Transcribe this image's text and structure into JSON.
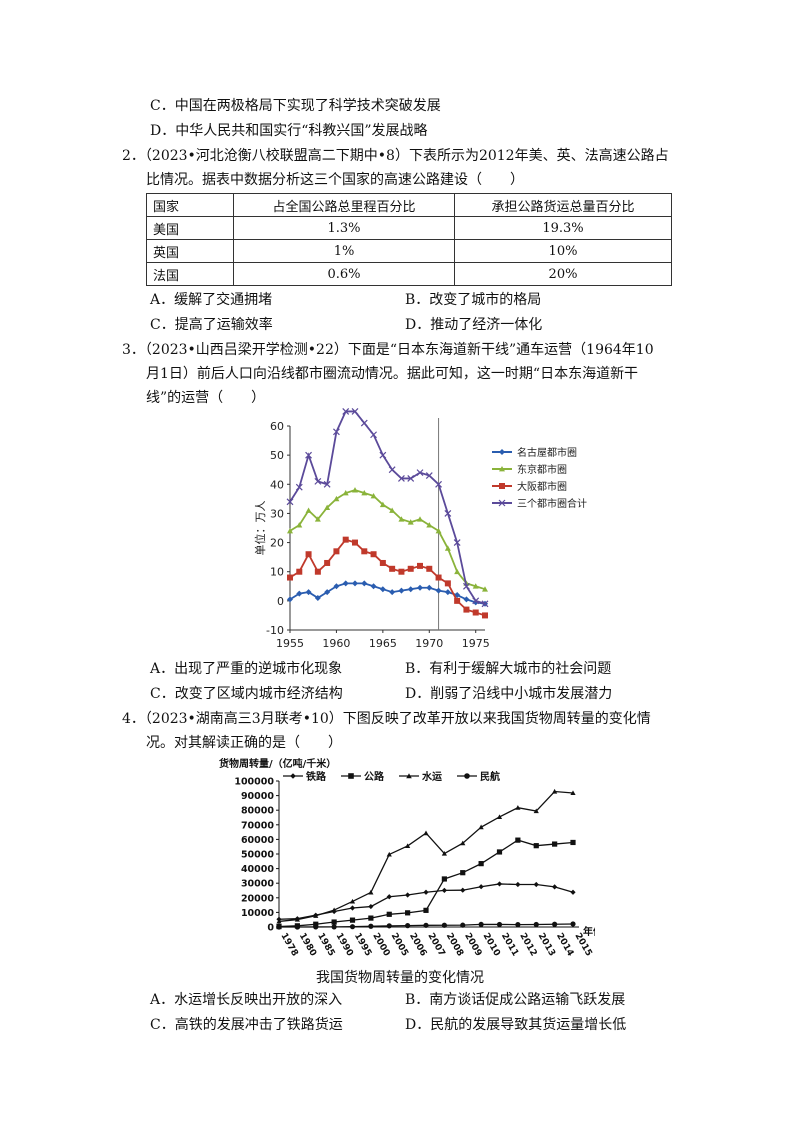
{
  "q1": {
    "optC": "C．中国在两极格局下实现了科学技术突破发展",
    "optD": "D．中华人民共和国实行“科教兴国”发展战略"
  },
  "q2": {
    "line1": "2．（2023•河北沧衡八校联盟高二下期中•8）下表所示为2012年美、英、法高速公路占",
    "line2": "比情况。据表中数据分析这三个国家的高速公路建设（　　）",
    "table": {
      "headers": [
        "国家",
        "占全国公路总里程百分比",
        "承担公路货运总量百分比"
      ],
      "rows": [
        [
          "美国",
          "1.3%",
          "19.3%"
        ],
        [
          "英国",
          "1%",
          "10%"
        ],
        [
          "法国",
          "0.6%",
          "20%"
        ]
      ]
    },
    "options": [
      "A．缓解了交通拥堵",
      "B．改变了城市的格局",
      "C．提高了运输效率",
      "D．推动了经济一体化"
    ]
  },
  "q3": {
    "line1": "3．（2023•山西吕梁开学检测•22）下面是“日本东海道新干线”通车运营（1964年10",
    "line2": "月1日）前后人口向沿线都市圈流动情况。据此可知，这一时期“日本东海道新干",
    "line3": "线”的运营（　　）",
    "options": [
      "A．出现了严重的逆城市化现象",
      "B．有利于缓解大城市的社会问题",
      "C．改变了区域内城市经济结构",
      "D．削弱了沿线中小城市发展潜力"
    ]
  },
  "q4": {
    "line1": "4．（2023•湖南高三3月联考•10）下图反映了改革开放以来我国货物周转量的变化情",
    "line2": "况。对其解读正确的是（　　）",
    "caption": "我国货物周转量的变化情况",
    "options": [
      "A．水运增长反映出开放的深入",
      "B．南方谈话促成公路运输飞跃发展",
      "C．高铁的发展冲击了铁路货运",
      "D．民航的发展导致其货运量增长低"
    ]
  },
  "chart_data": [
    {
      "type": "line",
      "ylabel": "单位：万人",
      "ylim": [
        -10,
        60
      ],
      "xlim": [
        1955,
        1976
      ],
      "xticks": [
        1955,
        1960,
        1965,
        1970,
        1975
      ],
      "yticks": [
        -10,
        0,
        10,
        20,
        30,
        40,
        50,
        60
      ],
      "x": [
        1955,
        1956,
        1957,
        1958,
        1959,
        1960,
        1961,
        1962,
        1963,
        1964,
        1965,
        1966,
        1967,
        1968,
        1969,
        1970,
        1971,
        1972,
        1973,
        1974,
        1975,
        1976
      ],
      "series": [
        {
          "name": "名古屋都市圈",
          "color": "#2a5db0",
          "marker": "diamond",
          "values": [
            0.5,
            2.5,
            3,
            1,
            3,
            5,
            6,
            6,
            6,
            5,
            4,
            3,
            3.5,
            4,
            4.5,
            4.5,
            3.5,
            3,
            2,
            0.5,
            -0.5,
            -1
          ]
        },
        {
          "name": "东京都市圈",
          "color": "#8ab33a",
          "marker": "triangle",
          "values": [
            24,
            26,
            31,
            28,
            32,
            35,
            37,
            38,
            37,
            36,
            33,
            31,
            28,
            27,
            28,
            26,
            24,
            18,
            10,
            6,
            5,
            4
          ]
        },
        {
          "name": "大阪都市圈",
          "color": "#c0392b",
          "marker": "square",
          "values": [
            8,
            10,
            16,
            10,
            13,
            17,
            21,
            20,
            17,
            16,
            13,
            11,
            10,
            11,
            12,
            11,
            8,
            6,
            0,
            -3,
            -4,
            -5
          ]
        },
        {
          "name": "三个都市圈合计",
          "color": "#5b4a9a",
          "marker": "x",
          "values": [
            34,
            39,
            50,
            41,
            40,
            58,
            65,
            65,
            61,
            57,
            50,
            45,
            42,
            42,
            44,
            43,
            40,
            30,
            20,
            5,
            0,
            -1
          ]
        }
      ]
    },
    {
      "type": "line",
      "title": "货物周转量/（亿吨/千米）",
      "xlabel": "年份",
      "ylim": [
        0,
        100000
      ],
      "yticks": [
        0,
        10000,
        20000,
        30000,
        40000,
        50000,
        60000,
        70000,
        80000,
        90000,
        100000
      ],
      "categories": [
        "1978",
        "1980",
        "1985",
        "1990",
        "1995",
        "2000",
        "2005",
        "2006",
        "2007",
        "2008",
        "2009",
        "2010",
        "2011",
        "2012",
        "2013",
        "2014",
        "2015"
      ],
      "series": [
        {
          "name": "铁路",
          "marker": "diamond",
          "values": [
            5300,
            5700,
            8100,
            10600,
            13000,
            14000,
            20700,
            21900,
            23800,
            25100,
            25200,
            27600,
            29500,
            29100,
            29100,
            27500,
            23800
          ]
        },
        {
          "name": "公路",
          "marker": "square",
          "values": [
            300,
            800,
            1900,
            3400,
            4700,
            6100,
            8700,
            9700,
            11400,
            32900,
            37200,
            43400,
            51400,
            59500,
            55700,
            56800,
            57900
          ]
        },
        {
          "name": "水运",
          "marker": "triangle",
          "values": [
            3800,
            5100,
            7700,
            11600,
            17500,
            23700,
            49700,
            55500,
            64300,
            50300,
            57400,
            68400,
            75400,
            81700,
            79400,
            92800,
            91800
          ]
        },
        {
          "name": "民航",
          "marker": "circle",
          "values": [
            10,
            14,
            40,
            80,
            220,
            500,
            790,
            940,
            1160,
            1200,
            1260,
            1780,
            1740,
            1640,
            1700,
            1870,
            2080
          ]
        }
      ]
    }
  ]
}
